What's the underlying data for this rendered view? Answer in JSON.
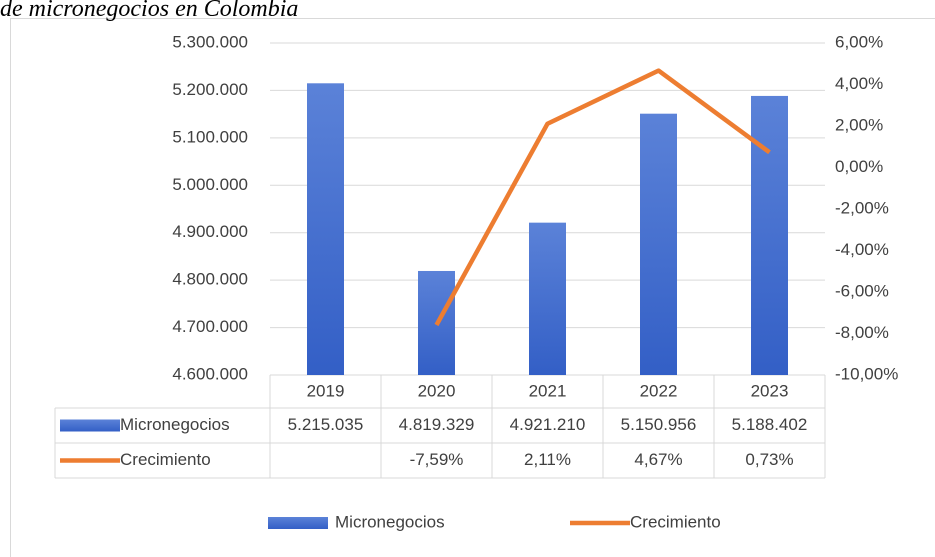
{
  "chart_data": {
    "type": "bar-line",
    "title": "de micronegocios en Colombia",
    "categories": [
      "2019",
      "2020",
      "2021",
      "2022",
      "2023"
    ],
    "series": [
      {
        "name": "Micronegocios",
        "type": "bar",
        "color": "#4472c4",
        "values": [
          5215035,
          4819329,
          4921210,
          5150956,
          5188402
        ],
        "value_labels": [
          "5.215.035",
          "4.819.329",
          "4.921.210",
          "5.150.956",
          "5.188.402"
        ]
      },
      {
        "name": "Crecimiento",
        "type": "line",
        "axis": "y2",
        "color": "#ed7d31",
        "values": [
          null,
          -7.59,
          2.11,
          4.67,
          0.73
        ],
        "value_labels": [
          null,
          "-7,59%",
          "2,11%",
          "4,67%",
          "0,73%"
        ]
      }
    ],
    "ylim": [
      4600000,
      5300000
    ],
    "yticks": [
      {
        "value": 4600000,
        "label": "4.600.000"
      },
      {
        "value": 4700000,
        "label": "4.700.000"
      },
      {
        "value": 4800000,
        "label": "4.800.000"
      },
      {
        "value": 4900000,
        "label": "4.900.000"
      },
      {
        "value": 5000000,
        "label": "5.000.000"
      },
      {
        "value": 5100000,
        "label": "5.100.000"
      },
      {
        "value": 5200000,
        "label": "5.200.000"
      },
      {
        "value": 5300000,
        "label": "5.300.000"
      }
    ],
    "y2lim": [
      -10,
      6
    ],
    "y2ticks": [
      {
        "value": -10,
        "label": "-10,00%"
      },
      {
        "value": -8,
        "label": "-8,00%"
      },
      {
        "value": -6,
        "label": "-6,00%"
      },
      {
        "value": -4,
        "label": "-4,00%"
      },
      {
        "value": -2,
        "label": "-2,00%"
      },
      {
        "value": 0,
        "label": "0,00%"
      },
      {
        "value": 2,
        "label": "2,00%"
      },
      {
        "value": 4,
        "label": "4,00%"
      },
      {
        "value": 6,
        "label": "6,00%"
      }
    ],
    "grid": true,
    "legend": "bottom"
  }
}
